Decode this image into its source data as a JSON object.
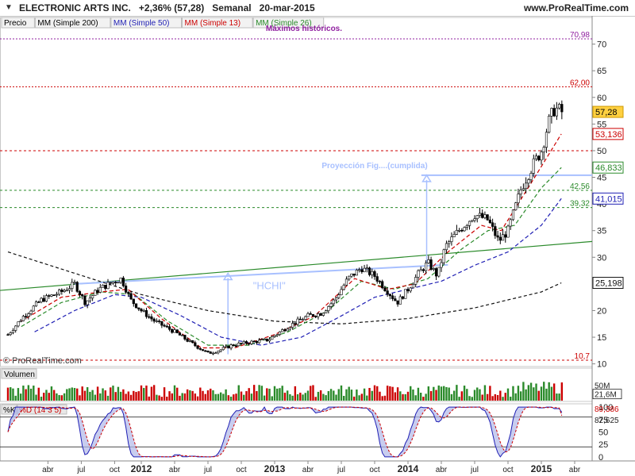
{
  "header": {
    "menu_icon": "triangle-down-icon",
    "title": "ELECTRONIC ARTS INC.   +2,36% (57,28)   Semanal   20-mar-2015",
    "brand": "www.ProRealTime.com"
  },
  "legend": {
    "items": [
      {
        "text": "Precio",
        "color": "#000000"
      },
      {
        "text": "MM (Simple 200)",
        "color": "#000000"
      },
      {
        "text": "MM (Simple 50)",
        "color": "#1f1fb4"
      },
      {
        "text": "MM (Simple 13)",
        "color": "#cc0000"
      },
      {
        "text": "MM (Simple 26)",
        "color": "#2a8a2a"
      }
    ]
  },
  "copyright": "© ProRealTime.com",
  "chart_data": [
    {
      "type": "candlestick",
      "xlabel": "",
      "ylabel": "",
      "ylim": [
        9.5,
        75
      ],
      "yticks": [
        10,
        15,
        20,
        25,
        30,
        35,
        40,
        45,
        50,
        55,
        60,
        65,
        70
      ],
      "x_tick_labels": [
        {
          "t": 0.3,
          "label": "abr",
          "bold": false
        },
        {
          "t": 0.55,
          "label": "jul",
          "bold": false
        },
        {
          "t": 0.8,
          "label": "oct",
          "bold": false
        },
        {
          "t": 1.0,
          "label": "2012",
          "bold": true
        },
        {
          "t": 1.25,
          "label": "abr",
          "bold": false
        },
        {
          "t": 1.5,
          "label": "jul",
          "bold": false
        },
        {
          "t": 1.75,
          "label": "oct",
          "bold": false
        },
        {
          "t": 2.0,
          "label": "2013",
          "bold": true
        },
        {
          "t": 2.25,
          "label": "abr",
          "bold": false
        },
        {
          "t": 2.5,
          "label": "jul",
          "bold": false
        },
        {
          "t": 2.75,
          "label": "oct",
          "bold": false
        },
        {
          "t": 3.0,
          "label": "2014",
          "bold": true
        },
        {
          "t": 3.25,
          "label": "abr",
          "bold": false
        },
        {
          "t": 3.5,
          "label": "jul",
          "bold": false
        },
        {
          "t": 3.75,
          "label": "oct",
          "bold": false
        },
        {
          "t": 4.0,
          "label": "2015",
          "bold": true
        },
        {
          "t": 4.25,
          "label": "abr",
          "bold": false
        }
      ],
      "price_path": [
        [
          0,
          15.5
        ],
        [
          0.12,
          19
        ],
        [
          0.25,
          22
        ],
        [
          0.4,
          23.5
        ],
        [
          0.5,
          25
        ],
        [
          0.58,
          21.5
        ],
        [
          0.68,
          24
        ],
        [
          0.8,
          25.5
        ],
        [
          0.85,
          26
        ],
        [
          0.92,
          22
        ],
        [
          1.0,
          20
        ],
        [
          1.1,
          18
        ],
        [
          1.25,
          16
        ],
        [
          1.4,
          13.5
        ],
        [
          1.5,
          12
        ],
        [
          1.58,
          12.5
        ],
        [
          1.68,
          13.5
        ],
        [
          1.8,
          14
        ],
        [
          1.95,
          14.5
        ],
        [
          2.1,
          17
        ],
        [
          2.25,
          19
        ],
        [
          2.35,
          19.5
        ],
        [
          2.45,
          22
        ],
        [
          2.55,
          26
        ],
        [
          2.65,
          28
        ],
        [
          2.75,
          26.5
        ],
        [
          2.85,
          23.5
        ],
        [
          2.92,
          21.5
        ],
        [
          3.0,
          24
        ],
        [
          3.08,
          27
        ],
        [
          3.15,
          29
        ],
        [
          3.22,
          26.5
        ],
        [
          3.28,
          32
        ],
        [
          3.38,
          35
        ],
        [
          3.5,
          38
        ],
        [
          3.6,
          37
        ],
        [
          3.68,
          33
        ],
        [
          3.75,
          35
        ],
        [
          3.85,
          43
        ],
        [
          3.93,
          47
        ],
        [
          4.0,
          50
        ],
        [
          4.05,
          55
        ],
        [
          4.1,
          58
        ],
        [
          4.15,
          57.28
        ]
      ],
      "last_price": 57.28,
      "moving_averages": [
        {
          "name": "MM (Simple 200)",
          "color": "#111111",
          "dash": "4,3",
          "end_value": 25.198,
          "points": [
            [
              0,
              31
            ],
            [
              0.5,
              27
            ],
            [
              1.0,
              23
            ],
            [
              1.5,
              20
            ],
            [
              2.0,
              18
            ],
            [
              2.5,
              17.5
            ],
            [
              3.0,
              18.5
            ],
            [
              3.5,
              20.5
            ],
            [
              4.0,
              23.5
            ],
            [
              4.15,
              25.198
            ]
          ]
        },
        {
          "name": "MM (Simple 50)",
          "color": "#1f1fb4",
          "dash": "5,3",
          "end_value": 41.015,
          "points": [
            [
              0.2,
              16
            ],
            [
              0.5,
              20
            ],
            [
              0.8,
              23
            ],
            [
              1.0,
              22.5
            ],
            [
              1.3,
              19
            ],
            [
              1.6,
              15
            ],
            [
              1.9,
              13.5
            ],
            [
              2.2,
              15
            ],
            [
              2.5,
              19
            ],
            [
              2.75,
              22.5
            ],
            [
              3.0,
              24
            ],
            [
              3.25,
              25.5
            ],
            [
              3.5,
              28.5
            ],
            [
              3.75,
              31
            ],
            [
              4.0,
              36
            ],
            [
              4.15,
              41.015
            ]
          ]
        },
        {
          "name": "MM (Simple 26)",
          "color": "#2a8a2a",
          "dash": "5,3",
          "end_value": 46.833,
          "points": [
            [
              0.1,
              17
            ],
            [
              0.4,
              21.5
            ],
            [
              0.7,
              23.5
            ],
            [
              0.95,
              23
            ],
            [
              1.2,
              18
            ],
            [
              1.5,
              13.5
            ],
            [
              1.8,
              13.5
            ],
            [
              2.1,
              16
            ],
            [
              2.4,
              20
            ],
            [
              2.65,
              25.5
            ],
            [
              2.9,
              24
            ],
            [
              3.15,
              26
            ],
            [
              3.4,
              31.5
            ],
            [
              3.6,
              35
            ],
            [
              3.8,
              36
            ],
            [
              4.0,
              43
            ],
            [
              4.15,
              46.833
            ]
          ]
        },
        {
          "name": "MM (Simple 13)",
          "color": "#cc0000",
          "dash": "5,3",
          "end_value": 53.136,
          "points": [
            [
              0.1,
              18
            ],
            [
              0.4,
              22.5
            ],
            [
              0.7,
              23.5
            ],
            [
              0.9,
              24
            ],
            [
              1.15,
              18.5
            ],
            [
              1.45,
              13
            ],
            [
              1.7,
              13
            ],
            [
              2.0,
              15.5
            ],
            [
              2.3,
              19
            ],
            [
              2.6,
              26
            ],
            [
              2.85,
              24
            ],
            [
              3.05,
              25
            ],
            [
              3.3,
              31
            ],
            [
              3.55,
              36
            ],
            [
              3.7,
              35
            ],
            [
              3.95,
              45
            ],
            [
              4.15,
              53.136
            ]
          ]
        }
      ],
      "horizontal_lines": [
        {
          "value": 70.98,
          "label": "70,98",
          "color": "#9020a0",
          "dash": "2,2"
        },
        {
          "value": 62.0,
          "label": "62,00",
          "color": "#cc0000",
          "dash": "2,2"
        },
        {
          "value": 50.0,
          "label": "",
          "color": "#cc0000",
          "dash": "3,3"
        },
        {
          "value": 42.56,
          "label": "42,56",
          "color": "#2a8a2a",
          "dash": "3,3"
        },
        {
          "value": 39.32,
          "label": "39,32",
          "color": "#2a8a2a",
          "dash": "3,3"
        },
        {
          "value": 10.7,
          "label": "10,7",
          "color": "#cc0000",
          "dash": "3,3"
        }
      ],
      "trendline": {
        "color": "#2a8a2a",
        "from": [
          -0.1,
          23.7
        ],
        "to": [
          4.4,
          33
        ]
      },
      "neckline": {
        "color": "#a8c0ff",
        "from": [
          0.5,
          25
        ],
        "to": [
          3.3,
          28.6
        ]
      },
      "target_line": {
        "color": "#a8c0ff",
        "value": 45.4,
        "from_t": 3.1,
        "to_t": 4.4
      },
      "arrows": [
        {
          "t": 1.65,
          "from": 11.8,
          "to": 27,
          "color": "#a8c0ff"
        },
        {
          "t": 3.14,
          "from": 29,
          "to": 45.4,
          "color": "#a8c0ff"
        }
      ],
      "annotations": [
        {
          "text": "Máximos históricos.",
          "t": 2.22,
          "value": 72.5,
          "color": "#9020a0",
          "bold": true
        },
        {
          "text": "Proyección Fig....(cumplida)",
          "t": 2.75,
          "value": 46.7,
          "color": "#a8c0ff",
          "bold": true
        },
        {
          "text": "\"HCHI\"",
          "t": 1.96,
          "value": 24,
          "color": "#a8c0ff",
          "bold": false,
          "size": 13
        }
      ],
      "price_tags": [
        {
          "value": 57.28,
          "label": "57,28",
          "bg": "#ffd040",
          "fg": "#000000",
          "border": "#cc9900"
        },
        {
          "value": 53.136,
          "label": "53,136",
          "bg": "#ffffff",
          "fg": "#cc0000",
          "border": "#cc0000"
        },
        {
          "value": 46.833,
          "label": "46,833",
          "bg": "#ffffff",
          "fg": "#2a8a2a",
          "border": "#2a8a2a"
        },
        {
          "value": 41.015,
          "label": "41,015",
          "bg": "#ffffff",
          "fg": "#1f1fb4",
          "border": "#1f1fb4"
        },
        {
          "value": 25.198,
          "label": "25,198",
          "bg": "#ffffff",
          "fg": "#111111",
          "border": "#111111"
        }
      ]
    },
    {
      "type": "bar",
      "title": "Volumen",
      "ylim": [
        0,
        70
      ],
      "yticks": [
        {
          "value": 50,
          "label": "50M"
        }
      ],
      "last_label": "21,6M",
      "last_value": 21.6,
      "up_color": "#2a8a2a",
      "down_color": "#cc0000"
    },
    {
      "type": "line",
      "title_k": "%K",
      "title_d": "%D (14 3 5)",
      "ylim": [
        -5,
        105
      ],
      "yticks": [
        0,
        25,
        50,
        75,
        100
      ],
      "levels": [
        80,
        20
      ],
      "k_last_label": "89,386",
      "d_last_label": "82,625",
      "k_last": 89.386,
      "d_last": 82.625,
      "k_color": "#1f1fb4",
      "d_color": "#cc0000",
      "fill_color": "#b0b8e8"
    }
  ]
}
